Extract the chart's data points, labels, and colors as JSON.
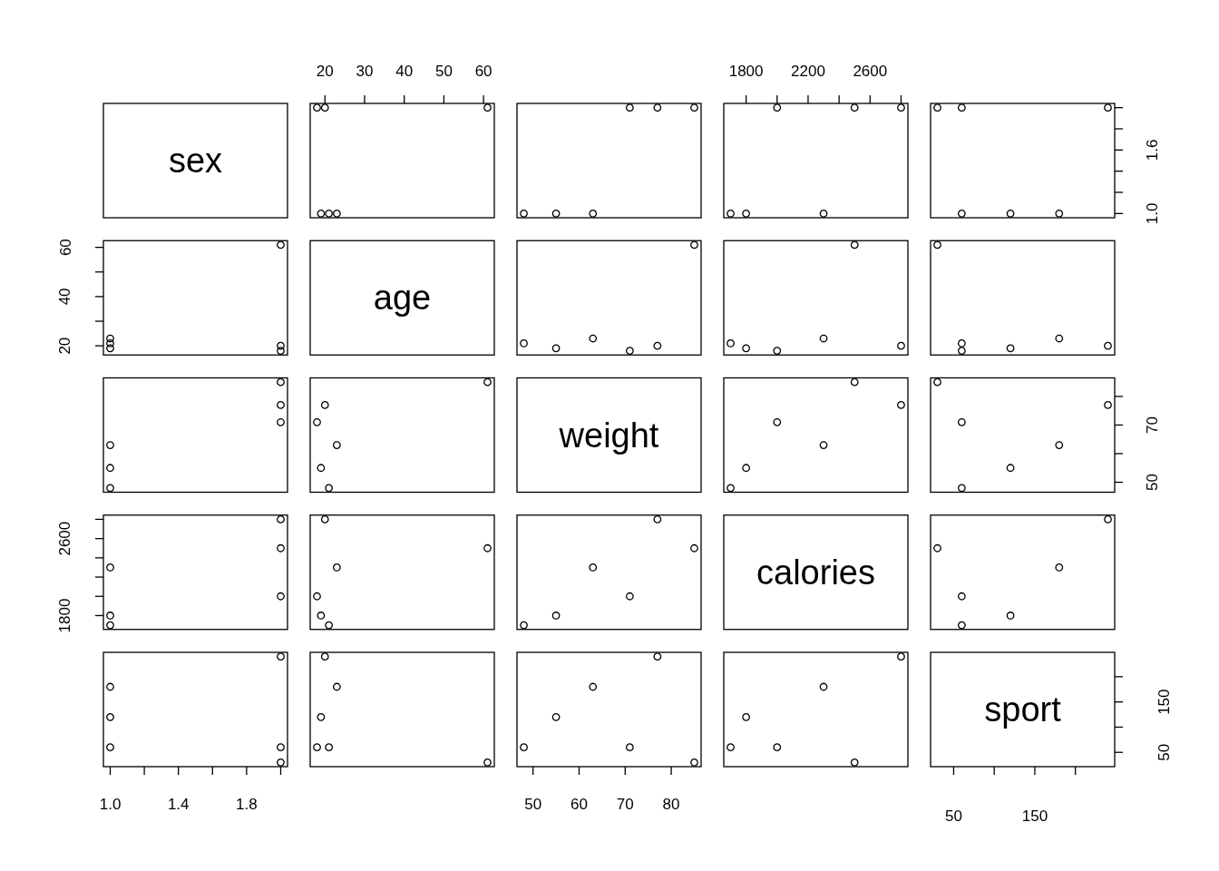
{
  "chart_data": [
    {
      "type": "other",
      "title": "sex"
    },
    {
      "type": "scatter",
      "marker": "circle",
      "x": [
        21,
        19,
        23,
        18,
        20,
        61
      ],
      "values": [
        1,
        1,
        1,
        2,
        2,
        2
      ],
      "color": "#000000",
      "xlim": [
        16.28,
        62.72
      ],
      "ylim": [
        0.96,
        2.04
      ],
      "xticks": [
        20,
        30,
        40,
        50,
        60
      ],
      "tick_labels": "x"
    },
    {
      "type": "scatter",
      "marker": "circle",
      "x": [
        48,
        55,
        63,
        71,
        77,
        85
      ],
      "values": [
        1,
        1,
        1,
        2,
        2,
        2
      ],
      "color": "#000000",
      "xlim": [
        46.52,
        86.48
      ],
      "ylim": [
        0.96,
        2.04
      ],
      "tick_labels": false
    },
    {
      "type": "scatter",
      "marker": "circle",
      "x": [
        1700,
        1800,
        2300,
        2000,
        2800,
        2500
      ],
      "values": [
        1,
        1,
        1,
        2,
        2,
        2
      ],
      "color": "#000000",
      "xlim": [
        1656,
        2844
      ],
      "ylim": [
        0.96,
        2.04
      ],
      "xticks": [
        1800,
        {
          "value": 2000,
          "label": null
        },
        2200,
        {
          "value": 2400,
          "label": null
        },
        2600,
        {
          "value": 2800,
          "label": null
        }
      ],
      "tick_labels": "x"
    },
    {
      "type": "scatter",
      "marker": "circle",
      "x": [
        60,
        120,
        180,
        60,
        240,
        30
      ],
      "values": [
        1,
        1,
        1,
        2,
        2,
        2
      ],
      "color": "#000000",
      "xlim": [
        21.6,
        248.4
      ],
      "ylim": [
        0.96,
        2.04
      ],
      "yticks": [
        {
          "value": 1,
          "label": "1.0"
        },
        {
          "value": 1.2,
          "label": null
        },
        {
          "value": 1.4,
          "label": null
        },
        {
          "value": 1.6,
          "label": "1.6"
        },
        {
          "value": 1.8,
          "label": null
        },
        {
          "value": 2,
          "label": null
        }
      ],
      "tick_labels": "y"
    },
    {
      "type": "scatter",
      "marker": "circle",
      "x": [
        1,
        1,
        1,
        2,
        2,
        2
      ],
      "values": [
        21,
        19,
        23,
        18,
        20,
        61
      ],
      "color": "#000000",
      "xlim": [
        0.96,
        2.04
      ],
      "ylim": [
        16.28,
        62.72
      ],
      "yticks": [
        20,
        {
          "value": 30,
          "label": null
        },
        40,
        {
          "value": 50,
          "label": null
        },
        60
      ],
      "tick_labels": "y"
    },
    {
      "type": "other",
      "title": "age"
    },
    {
      "type": "scatter",
      "marker": "circle",
      "x": [
        48,
        55,
        63,
        71,
        77,
        85
      ],
      "values": [
        21,
        19,
        23,
        18,
        20,
        61
      ],
      "color": "#000000",
      "xlim": [
        46.52,
        86.48
      ],
      "ylim": [
        16.28,
        62.72
      ],
      "tick_labels": false
    },
    {
      "type": "scatter",
      "marker": "circle",
      "x": [
        1700,
        1800,
        2300,
        2000,
        2800,
        2500
      ],
      "values": [
        21,
        19,
        23,
        18,
        20,
        61
      ],
      "color": "#000000",
      "xlim": [
        1656,
        2844
      ],
      "ylim": [
        16.28,
        62.72
      ],
      "tick_labels": false
    },
    {
      "type": "scatter",
      "marker": "circle",
      "x": [
        60,
        120,
        180,
        60,
        240,
        30
      ],
      "values": [
        21,
        19,
        23,
        18,
        20,
        61
      ],
      "color": "#000000",
      "xlim": [
        21.6,
        248.4
      ],
      "ylim": [
        16.28,
        62.72
      ],
      "tick_labels": false
    },
    {
      "type": "scatter",
      "marker": "circle",
      "x": [
        1,
        1,
        1,
        2,
        2,
        2
      ],
      "values": [
        48,
        55,
        63,
        71,
        77,
        85
      ],
      "color": "#000000",
      "xlim": [
        0.96,
        2.04
      ],
      "ylim": [
        46.52,
        86.48
      ],
      "tick_labels": false
    },
    {
      "type": "scatter",
      "marker": "circle",
      "x": [
        21,
        19,
        23,
        18,
        20,
        61
      ],
      "values": [
        48,
        55,
        63,
        71,
        77,
        85
      ],
      "color": "#000000",
      "xlim": [
        16.28,
        62.72
      ],
      "ylim": [
        46.52,
        86.48
      ],
      "tick_labels": false
    },
    {
      "type": "other",
      "title": "weight"
    },
    {
      "type": "scatter",
      "marker": "circle",
      "x": [
        1700,
        1800,
        2300,
        2000,
        2800,
        2500
      ],
      "values": [
        48,
        55,
        63,
        71,
        77,
        85
      ],
      "color": "#000000",
      "xlim": [
        1656,
        2844
      ],
      "ylim": [
        46.52,
        86.48
      ],
      "tick_labels": false
    },
    {
      "type": "scatter",
      "marker": "circle",
      "x": [
        60,
        120,
        180,
        60,
        240,
        30
      ],
      "values": [
        48,
        55,
        63,
        71,
        77,
        85
      ],
      "color": "#000000",
      "xlim": [
        21.6,
        248.4
      ],
      "ylim": [
        46.52,
        86.48
      ],
      "yticks": [
        50,
        {
          "value": 60,
          "label": null
        },
        70,
        {
          "value": 80,
          "label": null
        }
      ],
      "tick_labels": "y"
    },
    {
      "type": "scatter",
      "marker": "circle",
      "x": [
        1,
        1,
        1,
        2,
        2,
        2
      ],
      "values": [
        1700,
        1800,
        2300,
        2000,
        2800,
        2500
      ],
      "color": "#000000",
      "xlim": [
        0.96,
        2.04
      ],
      "ylim": [
        1656,
        2844
      ],
      "yticks": [
        1800,
        {
          "value": 2000,
          "label": null
        },
        {
          "value": 2200,
          "label": null
        },
        {
          "value": 2400,
          "label": null
        },
        2600,
        {
          "value": 2800,
          "label": null
        }
      ],
      "tick_labels": "y"
    },
    {
      "type": "scatter",
      "marker": "circle",
      "x": [
        21,
        19,
        23,
        18,
        20,
        61
      ],
      "values": [
        1700,
        1800,
        2300,
        2000,
        2800,
        2500
      ],
      "color": "#000000",
      "xlim": [
        16.28,
        62.72
      ],
      "ylim": [
        1656,
        2844
      ],
      "tick_labels": false
    },
    {
      "type": "scatter",
      "marker": "circle",
      "x": [
        48,
        55,
        63,
        71,
        77,
        85
      ],
      "values": [
        1700,
        1800,
        2300,
        2000,
        2800,
        2500
      ],
      "color": "#000000",
      "xlim": [
        46.52,
        86.48
      ],
      "ylim": [
        1656,
        2844
      ],
      "tick_labels": false
    },
    {
      "type": "other",
      "title": "calories"
    },
    {
      "type": "scatter",
      "marker": "circle",
      "x": [
        60,
        120,
        180,
        60,
        240,
        30
      ],
      "values": [
        1700,
        1800,
        2300,
        2000,
        2800,
        2500
      ],
      "color": "#000000",
      "xlim": [
        21.6,
        248.4
      ],
      "ylim": [
        1656,
        2844
      ],
      "tick_labels": false
    },
    {
      "type": "scatter",
      "marker": "circle",
      "x": [
        1,
        1,
        1,
        2,
        2,
        2
      ],
      "values": [
        60,
        120,
        180,
        60,
        240,
        30
      ],
      "color": "#000000",
      "xlim": [
        0.96,
        2.04
      ],
      "ylim": [
        21.6,
        248.4
      ],
      "xticks": [
        {
          "value": 1,
          "label": "1.0"
        },
        {
          "value": 1.2,
          "label": null
        },
        {
          "value": 1.4,
          "label": "1.4"
        },
        {
          "value": 1.6,
          "label": null
        },
        {
          "value": 1.8,
          "label": "1.8"
        },
        {
          "value": 2,
          "label": null
        }
      ],
      "tick_labels": "x"
    },
    {
      "type": "scatter",
      "marker": "circle",
      "x": [
        21,
        19,
        23,
        18,
        20,
        61
      ],
      "values": [
        60,
        120,
        180,
        60,
        240,
        30
      ],
      "color": "#000000",
      "xlim": [
        16.28,
        62.72
      ],
      "ylim": [
        21.6,
        248.4
      ],
      "tick_labels": false
    },
    {
      "type": "scatter",
      "marker": "circle",
      "x": [
        48,
        55,
        63,
        71,
        77,
        85
      ],
      "values": [
        60,
        120,
        180,
        60,
        240,
        30
      ],
      "color": "#000000",
      "xlim": [
        46.52,
        86.48
      ],
      "ylim": [
        21.6,
        248.4
      ],
      "xticks": [
        50,
        60,
        70,
        80
      ],
      "tick_labels": "x"
    },
    {
      "type": "scatter",
      "marker": "circle",
      "x": [
        1700,
        1800,
        2300,
        2000,
        2800,
        2500
      ],
      "values": [
        60,
        120,
        180,
        60,
        240,
        30
      ],
      "color": "#000000",
      "xlim": [
        1656,
        2844
      ],
      "ylim": [
        21.6,
        248.4
      ],
      "tick_labels": false
    },
    {
      "type": "scatter",
      "title": "sport",
      "xlim": [
        21.6,
        248.4
      ],
      "ylim": [
        21.6,
        248.4
      ],
      "xticks": [
        50,
        {
          "value": 100,
          "label": null
        },
        150,
        {
          "value": 200,
          "label": null
        }
      ],
      "yticks": [
        50,
        {
          "value": 100,
          "label": null
        },
        150,
        {
          "value": 200,
          "label": null
        }
      ]
    }
  ]
}
